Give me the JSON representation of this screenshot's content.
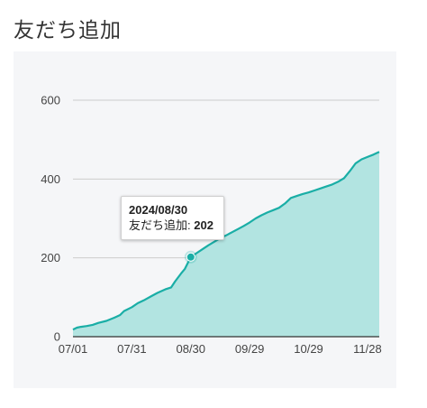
{
  "page": {
    "title": "友だち追加"
  },
  "chart_data": {
    "type": "area",
    "title": "",
    "xlabel": "",
    "ylabel": "",
    "x_start": "2024/07/01",
    "x_end": "2024/12/04",
    "x_ticks": [
      "07/01",
      "07/31",
      "08/30",
      "09/29",
      "10/29",
      "11/28"
    ],
    "y_ticks": [
      "0",
      "200",
      "400",
      "600"
    ],
    "ylim": [
      0,
      600
    ],
    "grid": true,
    "legend": "none",
    "series": [
      {
        "name": "友だち追加",
        "color": "#1aaea6",
        "fill": "#b2e4e1",
        "points": [
          [
            "2024/07/01",
            18
          ],
          [
            "2024/07/03",
            23
          ],
          [
            "2024/07/05",
            25
          ],
          [
            "2024/07/08",
            27
          ],
          [
            "2024/07/11",
            30
          ],
          [
            "2024/07/14",
            35
          ],
          [
            "2024/07/18",
            40
          ],
          [
            "2024/07/22",
            48
          ],
          [
            "2024/07/25",
            55
          ],
          [
            "2024/07/27",
            65
          ],
          [
            "2024/07/31",
            75
          ],
          [
            "2024/08/03",
            85
          ],
          [
            "2024/08/06",
            92
          ],
          [
            "2024/08/10",
            103
          ],
          [
            "2024/08/13",
            111
          ],
          [
            "2024/08/17",
            120
          ],
          [
            "2024/08/20",
            125
          ],
          [
            "2024/08/22",
            140
          ],
          [
            "2024/08/25",
            160
          ],
          [
            "2024/08/27",
            172
          ],
          [
            "2024/08/30",
            202
          ],
          [
            "2024/09/02",
            212
          ],
          [
            "2024/09/05",
            222
          ],
          [
            "2024/09/08",
            232
          ],
          [
            "2024/09/11",
            241
          ],
          [
            "2024/09/14",
            250
          ],
          [
            "2024/09/17",
            257
          ],
          [
            "2024/09/20",
            265
          ],
          [
            "2024/09/23",
            273
          ],
          [
            "2024/09/26",
            281
          ],
          [
            "2024/09/29",
            290
          ],
          [
            "2024/10/02",
            300
          ],
          [
            "2024/10/05",
            308
          ],
          [
            "2024/10/08",
            315
          ],
          [
            "2024/10/11",
            321
          ],
          [
            "2024/10/14",
            327
          ],
          [
            "2024/10/17",
            338
          ],
          [
            "2024/10/20",
            352
          ],
          [
            "2024/10/23",
            357
          ],
          [
            "2024/10/26",
            362
          ],
          [
            "2024/10/29",
            366
          ],
          [
            "2024/11/01",
            371
          ],
          [
            "2024/11/04",
            376
          ],
          [
            "2024/11/07",
            381
          ],
          [
            "2024/11/10",
            386
          ],
          [
            "2024/11/13",
            393
          ],
          [
            "2024/11/16",
            402
          ],
          [
            "2024/11/19",
            420
          ],
          [
            "2024/11/22",
            440
          ],
          [
            "2024/11/25",
            450
          ],
          [
            "2024/11/28",
            456
          ],
          [
            "2024/12/01",
            462
          ],
          [
            "2024/12/04",
            469
          ]
        ]
      }
    ],
    "tooltip": {
      "date": "2024/08/30",
      "label": "友だち追加",
      "value": "202"
    }
  }
}
